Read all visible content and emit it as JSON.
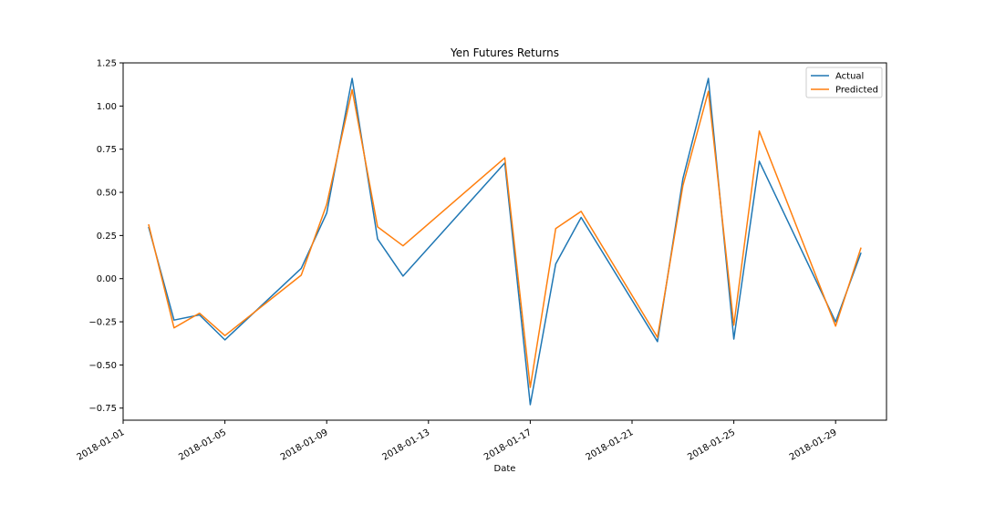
{
  "chart_data": {
    "type": "line",
    "title": "Yen Futures Returns",
    "xlabel": "Date",
    "ylabel": "",
    "x": [
      "2018-01-02",
      "2018-01-03",
      "2018-01-04",
      "2018-01-05",
      "2018-01-08",
      "2018-01-09",
      "2018-01-10",
      "2018-01-11",
      "2018-01-12",
      "2018-01-16",
      "2018-01-17",
      "2018-01-18",
      "2018-01-19",
      "2018-01-22",
      "2018-01-23",
      "2018-01-24",
      "2018-01-25",
      "2018-01-26",
      "2018-01-29",
      "2018-01-30"
    ],
    "series": [
      {
        "name": "Actual",
        "color": "#1f77b4",
        "values": [
          0.3,
          -0.24,
          -0.21,
          -0.355,
          0.06,
          0.38,
          1.16,
          0.23,
          0.015,
          0.67,
          -0.73,
          0.085,
          0.355,
          -0.365,
          0.58,
          1.16,
          -0.35,
          0.68,
          -0.25,
          0.15
        ]
      },
      {
        "name": "Predicted",
        "color": "#ff7f0e",
        "values": [
          0.315,
          -0.285,
          -0.2,
          -0.33,
          0.02,
          0.43,
          1.095,
          0.3,
          0.19,
          0.7,
          -0.63,
          0.29,
          0.39,
          -0.34,
          0.54,
          1.085,
          -0.27,
          0.855,
          -0.275,
          0.18
        ]
      }
    ],
    "xlim": [
      "2018-01-01",
      "2018-01-31"
    ],
    "ylim": [
      -0.82,
      1.25
    ],
    "x_ticks": [
      {
        "date": "2018-01-01",
        "label": "2018-01-01"
      },
      {
        "date": "2018-01-05",
        "label": "2018-01-05"
      },
      {
        "date": "2018-01-09",
        "label": "2018-01-09"
      },
      {
        "date": "2018-01-13",
        "label": "2018-01-13"
      },
      {
        "date": "2018-01-17",
        "label": "2018-01-17"
      },
      {
        "date": "2018-01-21",
        "label": "2018-01-21"
      },
      {
        "date": "2018-01-25",
        "label": "2018-01-25"
      },
      {
        "date": "2018-01-29",
        "label": "2018-01-29"
      }
    ],
    "y_ticks": [
      {
        "value": 1.25,
        "label": "1.25"
      },
      {
        "value": 1.0,
        "label": "1.00"
      },
      {
        "value": 0.75,
        "label": "0.75"
      },
      {
        "value": 0.5,
        "label": "0.50"
      },
      {
        "value": 0.25,
        "label": "0.25"
      },
      {
        "value": 0.0,
        "label": "0.00"
      },
      {
        "value": -0.25,
        "label": "−0.25"
      },
      {
        "value": -0.5,
        "label": "−0.50"
      },
      {
        "value": -0.75,
        "label": "−0.75"
      }
    ],
    "grid": false,
    "legend_position": "top-right"
  }
}
